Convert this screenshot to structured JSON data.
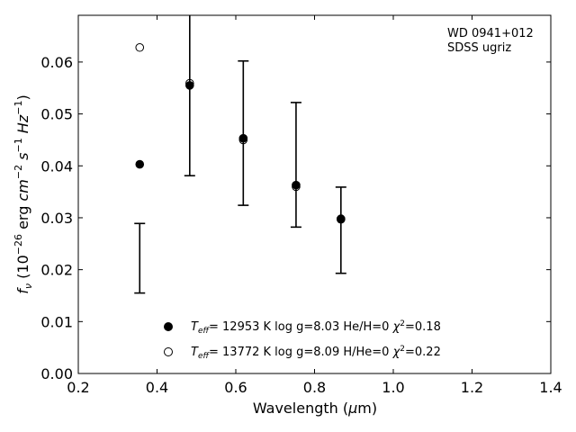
{
  "chart_data": {
    "type": "scatter",
    "annotation": [
      "WD 0941+012",
      "SDSS ugriz"
    ],
    "xlim": [
      0.2,
      1.4
    ],
    "ylim": [
      0.0,
      0.069
    ],
    "xticks": [
      0.2,
      0.4,
      0.6,
      0.8,
      1.0,
      1.2,
      1.4
    ],
    "xtick_labels": [
      "0.2",
      "0.4",
      "0.6",
      "0.8",
      "1.0",
      "1.2",
      "1.4"
    ],
    "yticks": [
      0.0,
      0.01,
      0.02,
      0.03,
      0.04,
      0.05,
      0.06
    ],
    "ytick_labels": [
      "0.00",
      "0.01",
      "0.02",
      "0.03",
      "0.04",
      "0.05",
      "0.06"
    ],
    "xlabel": {
      "prefix": "Wavelength (",
      "sym": "μ",
      "unit": "m)"
    },
    "ylabel": {
      "f": "f",
      "nu": "ν",
      "open": " (10",
      "exp26": "−26",
      "erg": " erg ",
      "cm": "cm",
      "exp2": "−2",
      "s": " s",
      "exp1a": "−1",
      "hz": " Hz",
      "exp1b": "−1",
      "close": ")"
    },
    "observed": {
      "x": [
        0.356,
        0.483,
        0.619,
        0.753,
        0.867
      ],
      "y": [
        0.0222,
        0.056,
        0.0463,
        0.0402,
        0.0276
      ],
      "yerr": [
        0.0067,
        0.0179,
        0.0139,
        0.012,
        0.0083
      ]
    },
    "series": [
      {
        "marker": "filled",
        "x": [
          0.356,
          0.483,
          0.619,
          0.753,
          0.867
        ],
        "y": [
          0.0403,
          0.0555,
          0.0453,
          0.0363,
          0.0298
        ],
        "legend": {
          "T": "T",
          "eff": "eff",
          "mid": "= 12953 K  log g=8.03  He/H=0  ",
          "chi": "χ",
          "sup": "2",
          "tail": "=0.18"
        }
      },
      {
        "marker": "open",
        "x": [
          0.356,
          0.483,
          0.619,
          0.753,
          0.867
        ],
        "y": [
          0.0628,
          0.0559,
          0.045,
          0.036,
          0.0297
        ],
        "legend": {
          "T": "T",
          "eff": "eff",
          "mid": "= 13772 K  log g=8.09  H/He=0  ",
          "chi": "χ",
          "sup": "2",
          "tail": "=0.22"
        }
      }
    ]
  }
}
